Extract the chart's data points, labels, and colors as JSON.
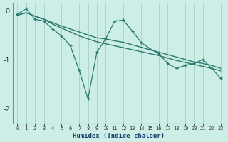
{
  "xlabel": "Humidex (Indice chaleur)",
  "background_color": "#cceee6",
  "grid_color": "#aad4cc",
  "line_color": "#2a7a6e",
  "x_values": [
    0,
    1,
    2,
    3,
    4,
    5,
    6,
    7,
    8,
    9,
    10,
    11,
    12,
    13,
    14,
    15,
    16,
    17,
    18,
    19,
    20,
    21,
    22,
    23
  ],
  "y_main": [
    -0.08,
    0.03,
    -0.18,
    -0.22,
    -0.38,
    -0.52,
    -0.72,
    -1.22,
    -1.8,
    -0.85,
    -0.58,
    -0.22,
    -0.2,
    -0.42,
    -0.65,
    -0.78,
    -0.88,
    -1.08,
    -1.18,
    -1.12,
    -1.08,
    -1.0,
    -1.18,
    -1.38
  ],
  "y_upper": [
    -0.1,
    -0.05,
    -0.12,
    -0.18,
    -0.25,
    -0.32,
    -0.38,
    -0.44,
    -0.5,
    -0.56,
    -0.58,
    -0.62,
    -0.65,
    -0.7,
    -0.75,
    -0.8,
    -0.85,
    -0.9,
    -0.95,
    -1.0,
    -1.05,
    -1.08,
    -1.12,
    -1.18
  ],
  "y_lower": [
    -0.1,
    -0.05,
    -0.12,
    -0.18,
    -0.28,
    -0.36,
    -0.44,
    -0.52,
    -0.58,
    -0.64,
    -0.68,
    -0.72,
    -0.76,
    -0.8,
    -0.84,
    -0.88,
    -0.92,
    -0.97,
    -1.02,
    -1.06,
    -1.1,
    -1.14,
    -1.18,
    -1.23
  ],
  "ylim": [
    -2.3,
    0.15
  ],
  "xlim": [
    -0.5,
    23.5
  ],
  "yticks": [
    0,
    -1,
    -2
  ],
  "xticks": [
    0,
    1,
    2,
    3,
    4,
    5,
    6,
    7,
    8,
    9,
    10,
    11,
    12,
    13,
    14,
    15,
    16,
    17,
    18,
    19,
    20,
    21,
    22,
    23
  ]
}
